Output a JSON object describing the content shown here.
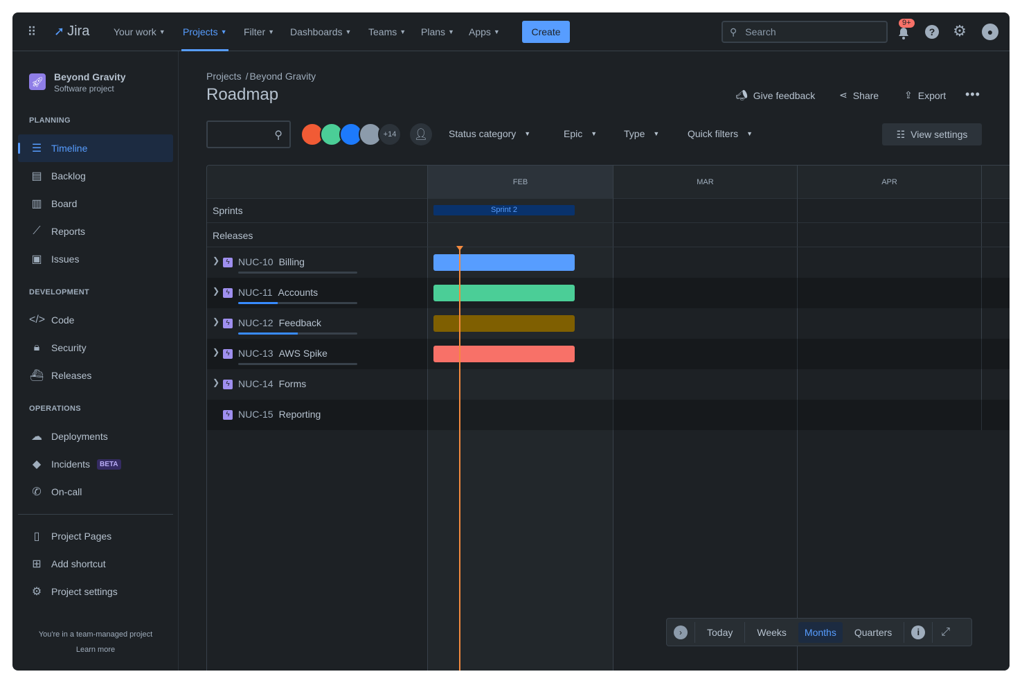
{
  "topnav": {
    "logo": "Jira",
    "items": [
      {
        "label": "Your work"
      },
      {
        "label": "Projects",
        "active": true
      },
      {
        "label": "Filter"
      },
      {
        "label": "Dashboards"
      },
      {
        "label": "Teams"
      },
      {
        "label": "Plans"
      },
      {
        "label": "Apps"
      }
    ],
    "create": "Create",
    "search_placeholder": "Search",
    "notifications_badge": "9+"
  },
  "project": {
    "name": "Beyond Gravity",
    "type": "Software project"
  },
  "sidebar": {
    "planning_title": "PLANNING",
    "planning": [
      {
        "label": "Timeline",
        "icon": "timeline-icon"
      },
      {
        "label": "Backlog",
        "icon": "backlog-icon"
      },
      {
        "label": "Board",
        "icon": "board-icon"
      },
      {
        "label": "Reports",
        "icon": "reports-icon"
      },
      {
        "label": "Issues",
        "icon": "issues-icon"
      }
    ],
    "development_title": "DEVELOPMENT",
    "development": [
      {
        "label": "Code"
      },
      {
        "label": "Security"
      },
      {
        "label": "Releases"
      }
    ],
    "operations_title": "OPERATIONS",
    "operations": [
      {
        "label": "Deployments"
      },
      {
        "label": "Incidents",
        "badge": "BETA"
      },
      {
        "label": "On-call"
      }
    ],
    "bottom": [
      {
        "label": "Project Pages"
      },
      {
        "label": "Add shortcut"
      },
      {
        "label": "Project settings"
      }
    ],
    "footer": "You're in a team-managed project",
    "learn_more": "Learn more"
  },
  "breadcrumb": {
    "root": "Projects",
    "project": "Beyond Gravity"
  },
  "page_title": "Roadmap",
  "actions": {
    "feedback": "Give feedback",
    "share": "Share",
    "export": "Export"
  },
  "filters": {
    "avatars_more": "+14",
    "status": "Status category",
    "epic": "Epic",
    "type": "Type",
    "quick": "Quick filters",
    "view_settings": "View settings"
  },
  "timeline": {
    "months": [
      "FEB",
      "MAR",
      "APR"
    ],
    "sprints_label": "Sprints",
    "sprint": "Sprint 2",
    "releases_label": "Releases",
    "epics": [
      {
        "key": "NUC-10",
        "name": "Billing",
        "progress": 0,
        "color": "#579dff",
        "bar": true,
        "expandable": true
      },
      {
        "key": "NUC-11",
        "name": "Accounts",
        "progress": 33,
        "color": "#4bce97",
        "bar": true,
        "expandable": true
      },
      {
        "key": "NUC-12",
        "name": "Feedback",
        "progress": 50,
        "color": "#7f5f01",
        "bar": true,
        "expandable": true
      },
      {
        "key": "NUC-13",
        "name": "AWS Spike",
        "progress": 0,
        "color": "#f87168",
        "bar": true,
        "expandable": true
      },
      {
        "key": "NUC-14",
        "name": "Forms",
        "bar": false,
        "expandable": true
      },
      {
        "key": "NUC-15",
        "name": "Reporting",
        "bar": false,
        "expandable": false
      }
    ]
  },
  "zoom_controls": {
    "today": "Today",
    "weeks": "Weeks",
    "months": "Months",
    "quarters": "Quarters",
    "selected": "Months"
  }
}
